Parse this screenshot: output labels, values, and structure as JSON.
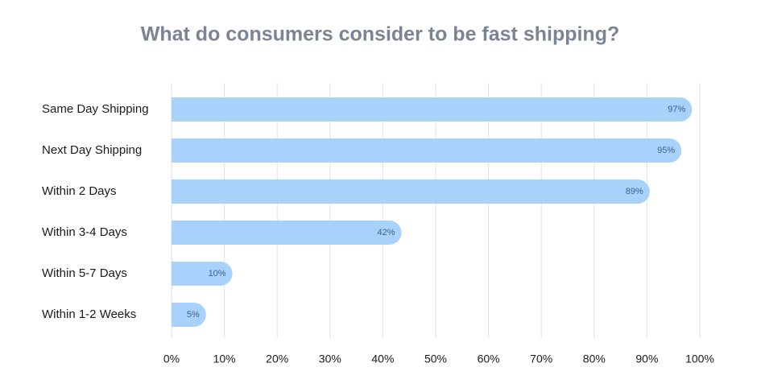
{
  "chart_data": {
    "type": "bar",
    "orientation": "horizontal",
    "title": "What do consumers consider to be fast shipping?",
    "categories": [
      "Same Day Shipping",
      "Next Day Shipping",
      "Within 2 Days",
      "Within 3-4 Days",
      "Within 5-7 Days",
      "Within 1-2 Weeks"
    ],
    "values": [
      97,
      95,
      89,
      42,
      10,
      5
    ],
    "value_labels": [
      "97%",
      "95%",
      "89%",
      "42%",
      "10%",
      "5%"
    ],
    "color": "#a8d1fb",
    "xlim": [
      0,
      100
    ],
    "xticks": [
      {
        "value": 0,
        "label": "0%"
      },
      {
        "value": 10,
        "label": "10%"
      },
      {
        "value": 20,
        "label": "20%"
      },
      {
        "value": 30,
        "label": "30%"
      },
      {
        "value": 40,
        "label": "40%"
      },
      {
        "value": 50,
        "label": "50%"
      },
      {
        "value": 60,
        "label": "60%"
      },
      {
        "value": 70,
        "label": "70%"
      },
      {
        "value": 80,
        "label": "80%"
      },
      {
        "value": 90,
        "label": "90%"
      },
      {
        "value": 100,
        "label": "100%"
      }
    ],
    "grid": true
  }
}
